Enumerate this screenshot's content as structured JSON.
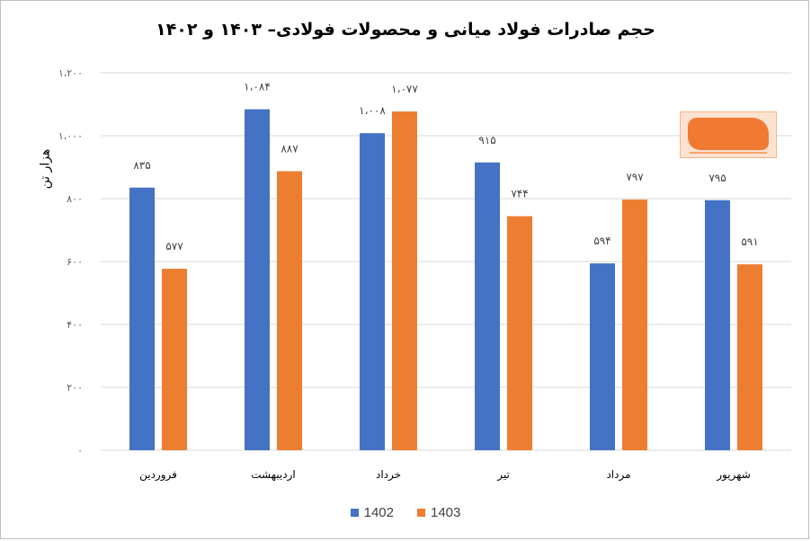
{
  "chart_data": {
    "type": "bar",
    "title": "حجم صادرات فولاد میانی و محصولات فولادی– ۱۴۰۳ و ۱۴۰۲",
    "ylabel": "هزار تن",
    "xlabel": "",
    "ylim": [
      0,
      1200
    ],
    "y_ticks": [
      0,
      200,
      400,
      600,
      800,
      1000,
      1200
    ],
    "y_tick_labels": [
      "۰",
      "۲۰۰",
      "۴۰۰",
      "۶۰۰",
      "۸۰۰",
      "۱،۰۰۰",
      "۱،۲۰۰"
    ],
    "grid": "horizontal",
    "legend_position": "bottom",
    "categories": [
      "فروردین",
      "اردیبهشت",
      "خرداد",
      "تیر",
      "مرداد",
      "شهریور"
    ],
    "series": [
      {
        "name": "1402",
        "color": "#4472c4",
        "values": [
          835,
          1084,
          1008,
          915,
          594,
          795
        ],
        "labels": [
          "۸۳۵",
          "۱،۰۸۴",
          "۱،۰۰۸",
          "۹۱۵",
          "۵۹۴",
          "۷۹۵"
        ]
      },
      {
        "name": "1403",
        "color": "#ed7d31",
        "values": [
          577,
          887,
          1077,
          744,
          797,
          591
        ],
        "labels": [
          "۵۷۷",
          "۸۸۷",
          "۱،۰۷۷",
          "۷۴۴",
          "۷۹۷",
          "۵۹۱"
        ]
      }
    ]
  },
  "colors": {
    "gridline": "#d9d9d9",
    "border": "#bfbfbf",
    "watermark": "#f07a32"
  },
  "watermark": {
    "icon": "brand-logo-watermark"
  }
}
